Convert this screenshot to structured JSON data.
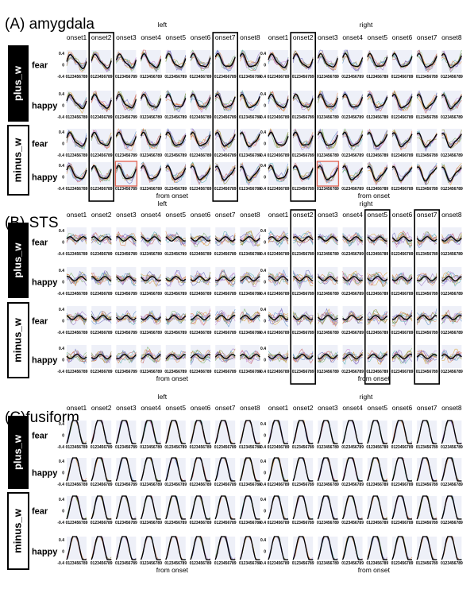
{
  "chart_data": [
    {
      "type": "line",
      "title": "(A) amygdala",
      "sides": [
        "left",
        "right"
      ],
      "columns": [
        "onset1",
        "onset2",
        "onset3",
        "onset4",
        "onset5",
        "onset6",
        "onset7",
        "onset8"
      ],
      "groups": [
        "plus_w",
        "minus_w"
      ],
      "conditions": [
        "fear",
        "happy"
      ],
      "xticks": "0123456789",
      "xlabel": "from onset",
      "yticks": [
        "0.4",
        "0",
        "-0.4"
      ],
      "ylim": [
        -0.4,
        0.4
      ],
      "pattern": "amygdala",
      "highlighted_columns": {
        "left": [
          2,
          7
        ],
        "right": [
          2
        ]
      },
      "highlighted_cells": [
        {
          "side": "left",
          "row": 3,
          "col": 2
        },
        {
          "side": "right",
          "row": 3,
          "col": 2
        }
      ]
    },
    {
      "type": "line",
      "title": "(B) STS",
      "sides": [
        "left",
        "right"
      ],
      "columns": [
        "onset1",
        "onset2",
        "onset3",
        "onset4",
        "onset5",
        "onset6",
        "onset7",
        "onset8"
      ],
      "groups": [
        "plus_w",
        "minus_w"
      ],
      "conditions": [
        "fear",
        "happy"
      ],
      "xticks": "0123456789",
      "xlabel": "from onset",
      "yticks": [
        "0.4",
        "0",
        "-0.4"
      ],
      "ylim": [
        -0.4,
        0.4
      ],
      "pattern": "sts",
      "highlighted_columns": {
        "left": [],
        "right": [
          2,
          5,
          7
        ]
      },
      "highlighted_cells": []
    },
    {
      "type": "line",
      "title": "(C)fusiform",
      "sides": [
        "left",
        "right"
      ],
      "columns": [
        "onset1",
        "onset2",
        "onset3",
        "onset4",
        "onset5",
        "onset6",
        "onset7",
        "onset8"
      ],
      "groups": [
        "plus_w",
        "minus_w"
      ],
      "conditions": [
        "fear",
        "happy"
      ],
      "xticks": "0123456789",
      "xlabel": "from onset",
      "yticks": [
        "0.4",
        "0",
        "-0.4"
      ],
      "ylim": [
        -0.4,
        0.4
      ],
      "pattern": "fusiform",
      "highlighted_columns": {
        "left": [],
        "right": []
      },
      "highlighted_cells": []
    }
  ],
  "colors": {
    "thin_lines": [
      "#d9a23a",
      "#5b8fc9",
      "#7fb36a",
      "#c65a5a",
      "#9b77c4",
      "#56b0b0",
      "#c98ad1",
      "#8c8c3a",
      "#e08a4f",
      "#6d6dbd"
    ],
    "mean_line": "#000000",
    "cell_background": "#eef0f8",
    "highlight_box": "#000000",
    "highlight_cell": "#e06a5a",
    "group_label_bg": "#000000"
  }
}
